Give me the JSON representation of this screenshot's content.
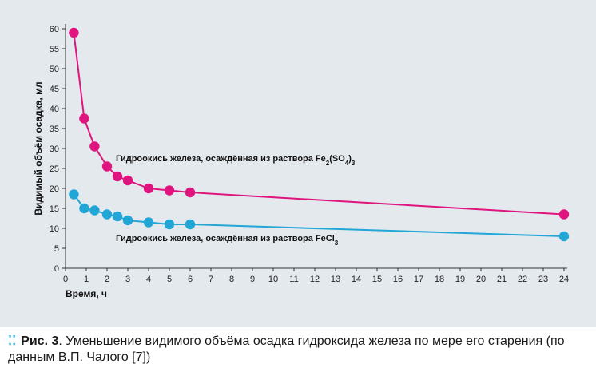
{
  "chart_data": {
    "type": "line",
    "xlabel": "Время, ч",
    "ylabel": "Видимый объём осадка, мл",
    "xlim": [
      0,
      24
    ],
    "ylim": [
      0,
      60
    ],
    "xticks": [
      0,
      1,
      2,
      3,
      4,
      5,
      6,
      7,
      8,
      9,
      10,
      11,
      12,
      13,
      14,
      15,
      16,
      17,
      18,
      19,
      20,
      21,
      22,
      23,
      24
    ],
    "yticks": [
      0,
      5,
      10,
      15,
      20,
      25,
      30,
      35,
      40,
      45,
      50,
      55,
      60
    ],
    "grid": false,
    "series": [
      {
        "label_text": "Гидроокись железа, осаждённая из раствора Fe",
        "label_formula": [
          "2",
          "(SO",
          "4",
          ")",
          "3"
        ],
        "color": "#e0147f",
        "x": [
          0.4,
          0.9,
          1.4,
          2.0,
          2.5,
          3.0,
          4.0,
          5.0,
          6.0,
          24.0
        ],
        "y": [
          59,
          37.5,
          30.5,
          25.5,
          23,
          22,
          20,
          19.5,
          19,
          13.5
        ]
      },
      {
        "label_text": "Гидроокись железа, осаждённая из раствора FeCl",
        "label_formula": [
          "3"
        ],
        "color": "#22a6d6",
        "x": [
          0.4,
          0.9,
          1.4,
          2.0,
          2.5,
          3.0,
          4.0,
          5.0,
          6.0,
          24.0
        ],
        "y": [
          18.5,
          15,
          14.5,
          13.5,
          13,
          12,
          11.5,
          11,
          11,
          8
        ]
      }
    ]
  },
  "caption": {
    "dots": "⁚⁚",
    "label": "Рис. 3",
    "text": ". Уменьшение видимого объёма осадка гидроксида железа по мере его старения (по данным В.П. Чалого [7])"
  }
}
